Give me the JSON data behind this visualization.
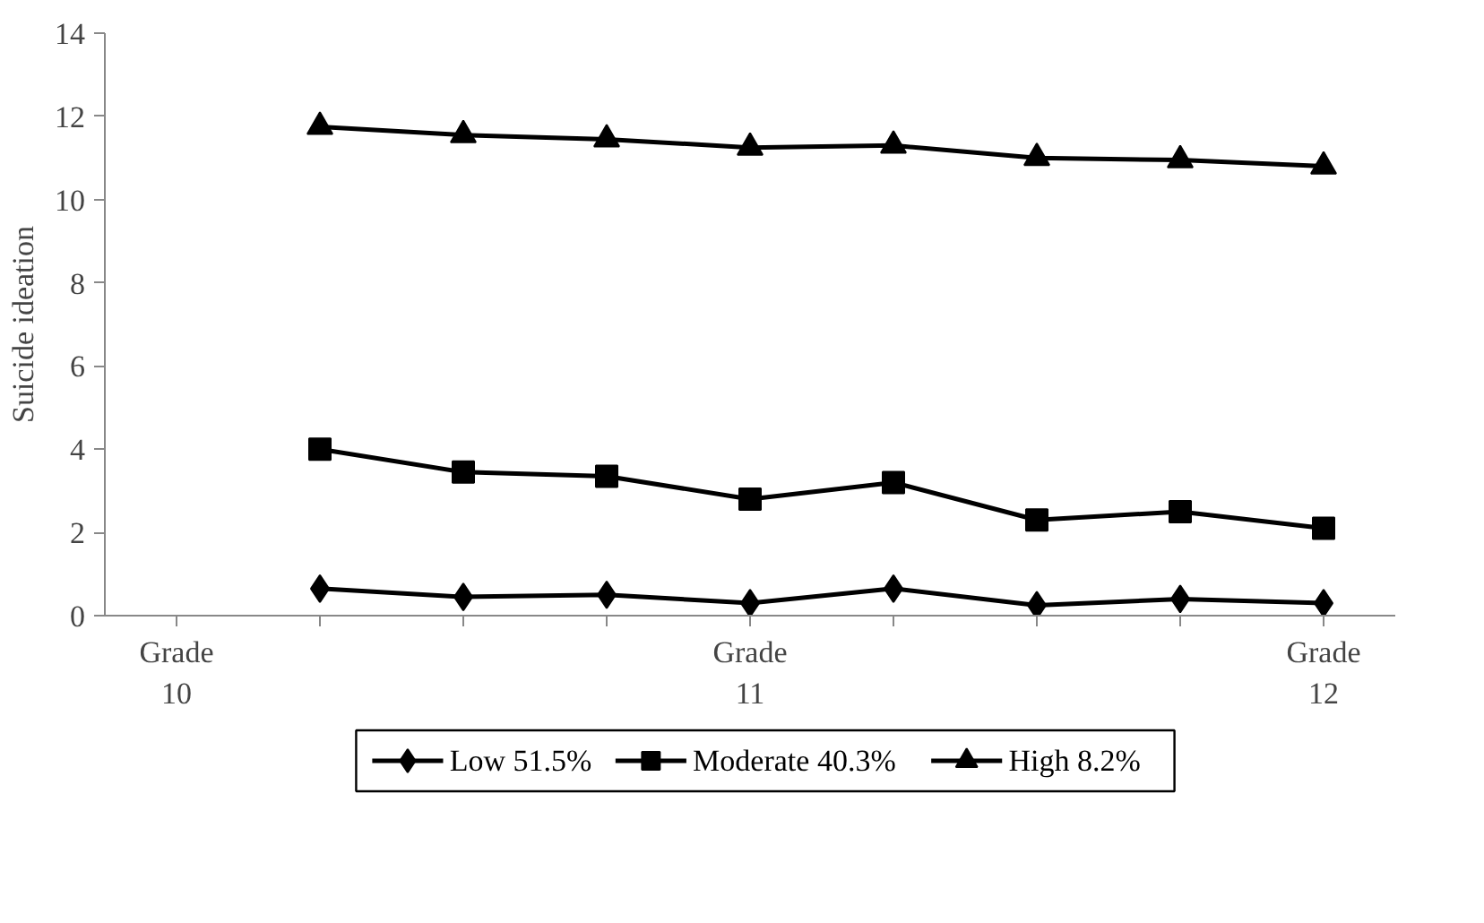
{
  "chart_data": {
    "type": "line",
    "ylabel": "Suicide ideation",
    "categories": [
      "Grade\n10",
      null,
      null,
      null,
      "Grade\n11",
      null,
      null,
      null,
      "Grade\n12"
    ],
    "series": [
      {
        "name": "Low 51.5%",
        "color": "#000000",
        "marker": "diamond",
        "values": [
          null,
          0.65,
          0.45,
          0.5,
          0.3,
          0.65,
          0.25,
          0.4,
          0.3
        ]
      },
      {
        "name": "Moderate 40.3%",
        "color": "#000000",
        "marker": "square",
        "values": [
          null,
          4.0,
          3.45,
          3.35,
          2.8,
          3.2,
          2.3,
          2.5,
          2.1
        ]
      },
      {
        "name": "High 8.2%",
        "color": "#000000",
        "marker": "triangle",
        "values": [
          null,
          11.75,
          11.55,
          11.45,
          11.25,
          11.3,
          11.0,
          10.95,
          10.8
        ]
      }
    ],
    "ylim": [
      0,
      14
    ],
    "yticks": [
      0,
      2,
      4,
      6,
      8,
      10,
      12,
      14
    ],
    "grid": false,
    "legend": "bottom"
  }
}
